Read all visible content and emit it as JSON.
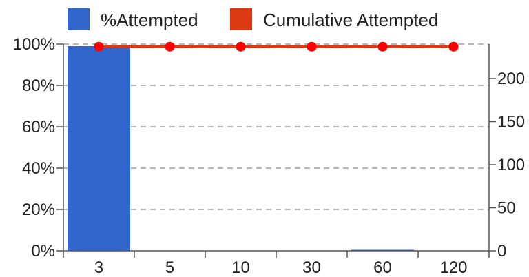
{
  "chart_data": {
    "type": "bar+line",
    "categories": [
      "3",
      "5",
      "10",
      "30",
      "60",
      "120"
    ],
    "series": [
      {
        "name": "%Attempted",
        "chart_type": "bar",
        "axis": "left",
        "color": "#3366cc",
        "values": [
          99,
          0,
          0,
          0,
          0.5,
          0
        ]
      },
      {
        "name": "Cumulative Attempted",
        "chart_type": "line",
        "axis": "right",
        "color": "#dc3912",
        "marker_color": "#ff0000",
        "values": [
          237,
          237,
          237,
          237,
          237,
          237
        ]
      }
    ],
    "left_axis": {
      "ylim": [
        0,
        100
      ],
      "ticks": [
        0,
        20,
        40,
        60,
        80,
        100
      ],
      "tick_labels": [
        "0%",
        "20%",
        "40%",
        "60%",
        "80%",
        "100%"
      ]
    },
    "right_axis": {
      "ylim": [
        0,
        240
      ],
      "ticks": [
        0,
        50,
        100,
        150,
        200
      ],
      "tick_labels": [
        "0",
        "50",
        "100",
        "150",
        "200"
      ]
    },
    "grid": true,
    "legend_position": "top"
  }
}
